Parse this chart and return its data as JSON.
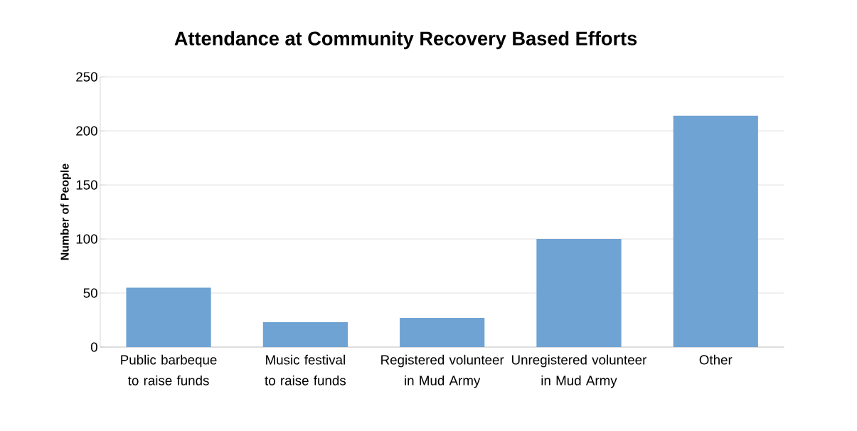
{
  "chart_data": {
    "type": "bar",
    "title": "Attendance at Community Recovery Based Efforts",
    "ylabel": "Number of People",
    "categories": [
      "Public barbeque to raise funds",
      "Music festival to raise funds",
      "Registered volunteer in Mud Army",
      "Unregistered volunteer in Mud Army",
      "Other"
    ],
    "values": [
      55,
      23,
      27,
      100,
      214
    ],
    "color": "#6fa3d3",
    "ylim": [
      0,
      250
    ],
    "yticks": [
      0,
      50,
      100,
      150,
      200,
      250
    ],
    "grid": "y"
  }
}
